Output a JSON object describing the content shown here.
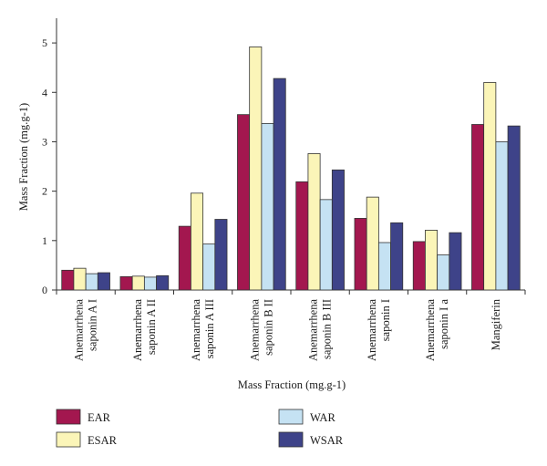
{
  "chart_data": {
    "type": "bar",
    "ylabel": "Mass Fraction (mg.g-1)",
    "xlabel": "Mass Fraction (mg.g-1)",
    "ylim": [
      0,
      5.5
    ],
    "yticks": [
      0,
      1,
      2,
      3,
      4,
      5
    ],
    "grid": false,
    "legend_position": "bottom",
    "categories": [
      [
        "Anemarrhena",
        "saponin A I"
      ],
      [
        "Anemarrhena",
        "saponin A II"
      ],
      [
        "Anemarrhena",
        "saponin A III"
      ],
      [
        "Anemarrhena",
        "saponin B II"
      ],
      [
        "Anemarrhena",
        "saponin B III"
      ],
      [
        "Anemarrhena",
        "saponin I"
      ],
      [
        "Anemarrhena",
        "saponin I a"
      ],
      [
        "Mangiferin"
      ]
    ],
    "series": [
      {
        "name": "EAR",
        "color": "#a3174f",
        "values": [
          0.4,
          0.27,
          1.29,
          3.55,
          2.19,
          1.45,
          0.98,
          3.35
        ]
      },
      {
        "name": "ESAR",
        "color": "#fbf5b8",
        "values": [
          0.44,
          0.28,
          1.96,
          4.92,
          2.76,
          1.88,
          1.21,
          4.2
        ]
      },
      {
        "name": "WAR",
        "color": "#c5e2f3",
        "values": [
          0.33,
          0.26,
          0.93,
          3.37,
          1.83,
          0.96,
          0.71,
          3.0
        ]
      },
      {
        "name": "WSAR",
        "color": "#3e4389",
        "values": [
          0.35,
          0.29,
          1.43,
          4.28,
          2.43,
          1.36,
          1.16,
          3.32
        ]
      }
    ]
  }
}
